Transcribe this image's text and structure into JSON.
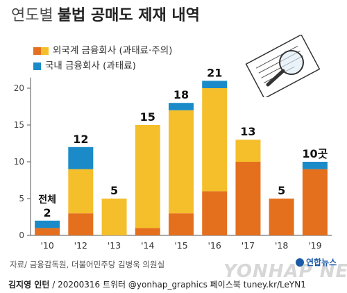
{
  "title": {
    "light": "연도별",
    "bold": "불법 공매도 제재 내역"
  },
  "legend": {
    "foreign_label": "외국계 금융회사 (과태료·주의)",
    "domestic_label": "국내 금융회사 (과태료)"
  },
  "annotations": {
    "first_bar_prefix": "전체",
    "last_bar_suffix": "곳"
  },
  "colors": {
    "foreign_orange": "#e4701e",
    "foreign_yellow": "#f5bf2b",
    "domestic": "#1a8bc8"
  },
  "chart_data": {
    "type": "bar",
    "stacked": true,
    "categories": [
      "'10",
      "'12",
      "'13",
      "'14",
      "'15",
      "'16",
      "'17",
      "'18",
      "'19"
    ],
    "series": [
      {
        "name": "외국계 금융회사 (과태료·주의)",
        "color": "#e4701e",
        "values": [
          1,
          3,
          0,
          1,
          3,
          6,
          10,
          5,
          9
        ]
      },
      {
        "name": "외국계 금융회사 (과태료·주의)",
        "color": "#f5bf2b",
        "values": [
          0,
          6,
          5,
          14,
          14,
          14,
          3,
          0,
          0
        ]
      },
      {
        "name": "국내 금융회사 (과태료)",
        "color": "#1a8bc8",
        "values": [
          1,
          3,
          0,
          0,
          1,
          1,
          0,
          0,
          1
        ]
      }
    ],
    "totals": [
      2,
      12,
      5,
      15,
      18,
      21,
      13,
      5,
      10
    ],
    "yticks": [
      0,
      5,
      10,
      15,
      20
    ],
    "ylim": [
      0,
      22
    ],
    "grid": false
  },
  "source": "자료/ 금융감독원, 더불어민주당 김병욱 의원실",
  "footer": {
    "author": "김지영 인턴",
    "rest": " / 20200316 트위터 @yonhap_graphics 페이스북 tuney.kr/LeYN1"
  },
  "branding": {
    "watermark": "YONHAP NEWS",
    "logo": "연합뉴스"
  }
}
